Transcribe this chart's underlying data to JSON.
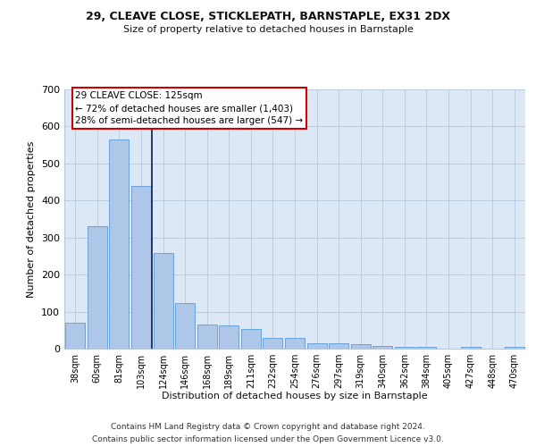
{
  "title": "29, CLEAVE CLOSE, STICKLEPATH, BARNSTAPLE, EX31 2DX",
  "subtitle": "Size of property relative to detached houses in Barnstaple",
  "xlabel": "Distribution of detached houses by size in Barnstaple",
  "ylabel": "Number of detached properties",
  "bar_color": "#aec6e8",
  "bar_edge_color": "#5b9bd5",
  "background_color": "#dce8f5",
  "categories": [
    "38sqm",
    "60sqm",
    "81sqm",
    "103sqm",
    "124sqm",
    "146sqm",
    "168sqm",
    "189sqm",
    "211sqm",
    "232sqm",
    "254sqm",
    "276sqm",
    "297sqm",
    "319sqm",
    "340sqm",
    "362sqm",
    "384sqm",
    "405sqm",
    "427sqm",
    "448sqm",
    "470sqm"
  ],
  "values": [
    70,
    330,
    565,
    440,
    258,
    122,
    65,
    63,
    52,
    28,
    28,
    15,
    14,
    12,
    7,
    5,
    5,
    0,
    5,
    0,
    5
  ],
  "marker_line_color": "#1a2a5e",
  "annotation_line1": "29 CLEAVE CLOSE: 125sqm",
  "annotation_line2": "← 72% of detached houses are smaller (1,403)",
  "annotation_line3": "28% of semi-detached houses are larger (547) →",
  "annotation_box_color": "#ffffff",
  "annotation_box_edge_color": "#cc0000",
  "ylim": [
    0,
    700
  ],
  "yticks": [
    0,
    100,
    200,
    300,
    400,
    500,
    600,
    700
  ],
  "footer_line1": "Contains HM Land Registry data © Crown copyright and database right 2024.",
  "footer_line2": "Contains public sector information licensed under the Open Government Licence v3.0."
}
